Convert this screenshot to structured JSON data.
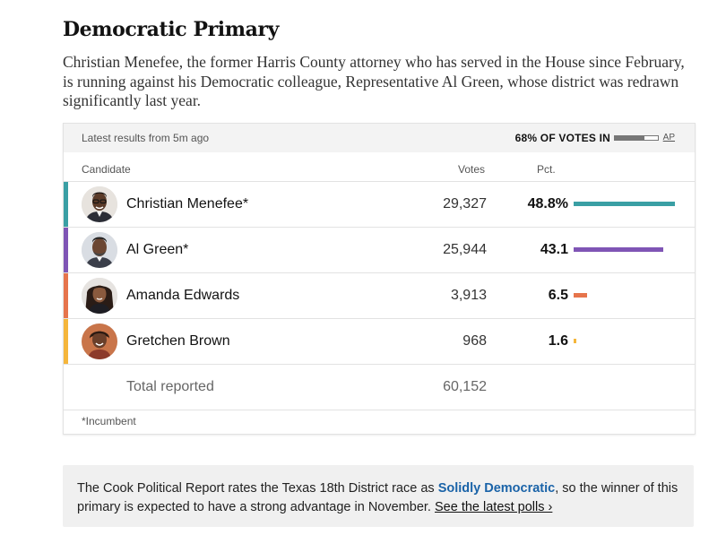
{
  "header": {
    "title": "Democratic Primary",
    "dek": "Christian Menefee, the former Harris County attorney who has served in the House since February, is running against his Democratic colleague, Representative Al Green, whose district was redrawn significantly last year."
  },
  "results": {
    "latest": "Latest results from 5m ago",
    "reporting_label": "68% OF VOTES IN",
    "reporting_fraction": 0.68,
    "source": "AP",
    "columns": {
      "candidate": "Candidate",
      "votes": "Votes",
      "pct": "Pct."
    },
    "candidates": [
      {
        "name": "Christian Menefee*",
        "votes": "29,327",
        "pct": "48.8%",
        "share": 48.8,
        "color": "#3a9fa4",
        "avatar": "avatar-christian-menefee"
      },
      {
        "name": "Al Green*",
        "votes": "25,944",
        "pct": "43.1",
        "share": 43.1,
        "color": "#7f55b5",
        "avatar": "avatar-al-green"
      },
      {
        "name": "Amanda Edwards",
        "votes": "3,913",
        "pct": "6.5",
        "share": 6.5,
        "color": "#e6744c",
        "avatar": "avatar-amanda-edwards"
      },
      {
        "name": "Gretchen Brown",
        "votes": "968",
        "pct": "1.6",
        "share": 1.6,
        "color": "#f5b63b",
        "avatar": "avatar-gretchen-brown"
      }
    ],
    "total_label": "Total reported",
    "total_votes": "60,152",
    "footnote": "*Incumbent"
  },
  "note": {
    "text_before": "The Cook Political Report rates the Texas 18th District race as ",
    "rating": "Solidly Democratic",
    "text_after": ", so the winner of this primary is expected to have a strong advantage in November. ",
    "link": "See the latest polls ›"
  }
}
